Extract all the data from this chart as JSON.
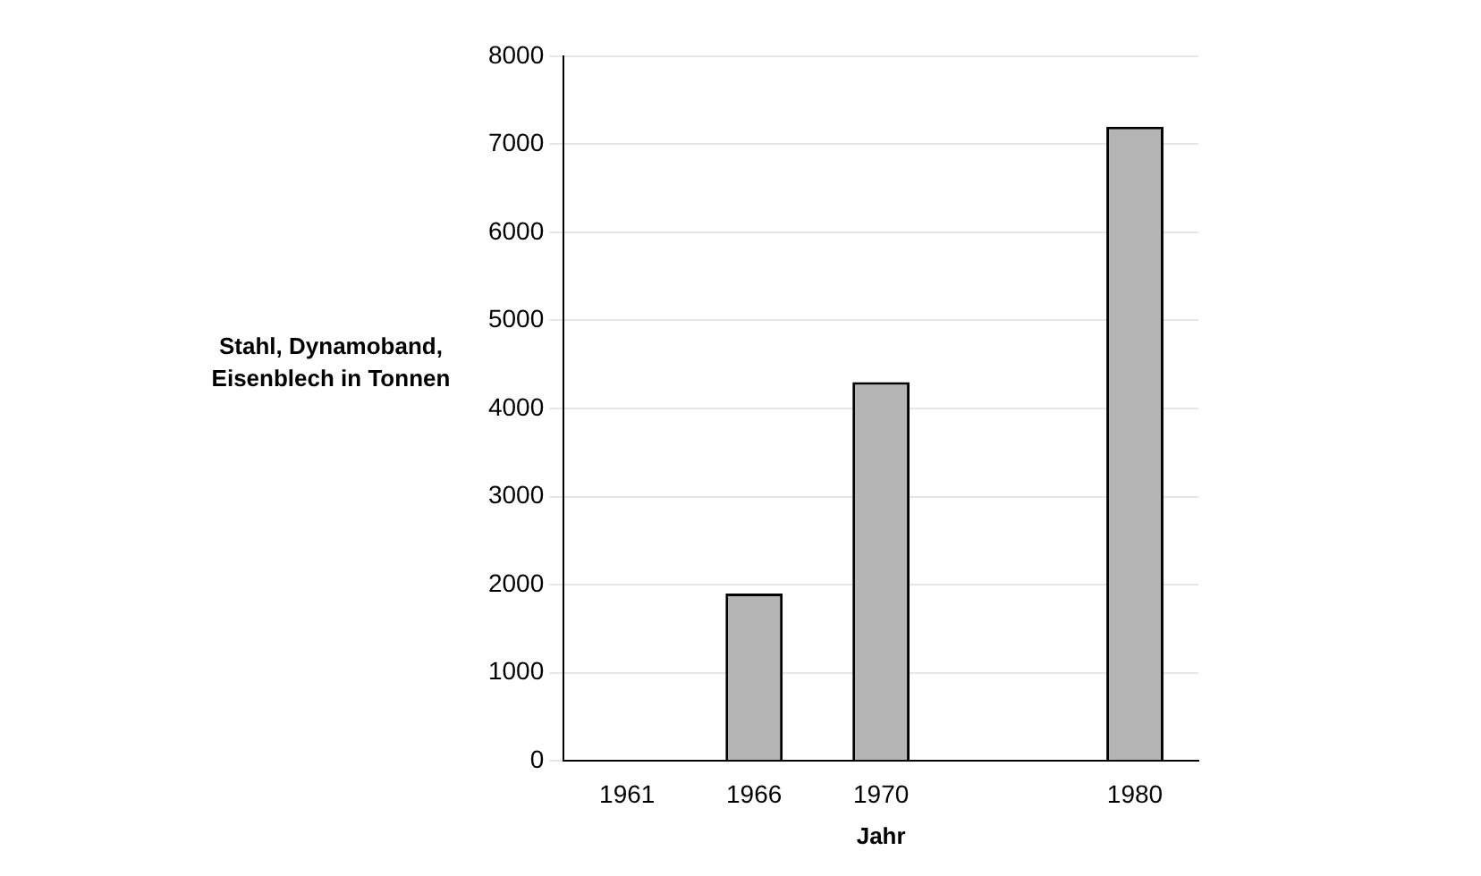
{
  "chart_data": {
    "type": "bar",
    "xlabel": "Jahr",
    "ylabel": "Stahl, Dynamoband, Eisenblech in Tonnen",
    "categories": [
      "1961",
      "1966",
      "1970",
      null,
      "1980"
    ],
    "values": [
      0,
      1900,
      4300,
      null,
      7200
    ],
    "color": "#b4b4b4",
    "ylim": [
      0,
      8000
    ],
    "yticks": [
      0,
      1000,
      2000,
      3000,
      4000,
      5000,
      6000,
      7000,
      8000
    ],
    "grid": "y",
    "legend": false
  }
}
